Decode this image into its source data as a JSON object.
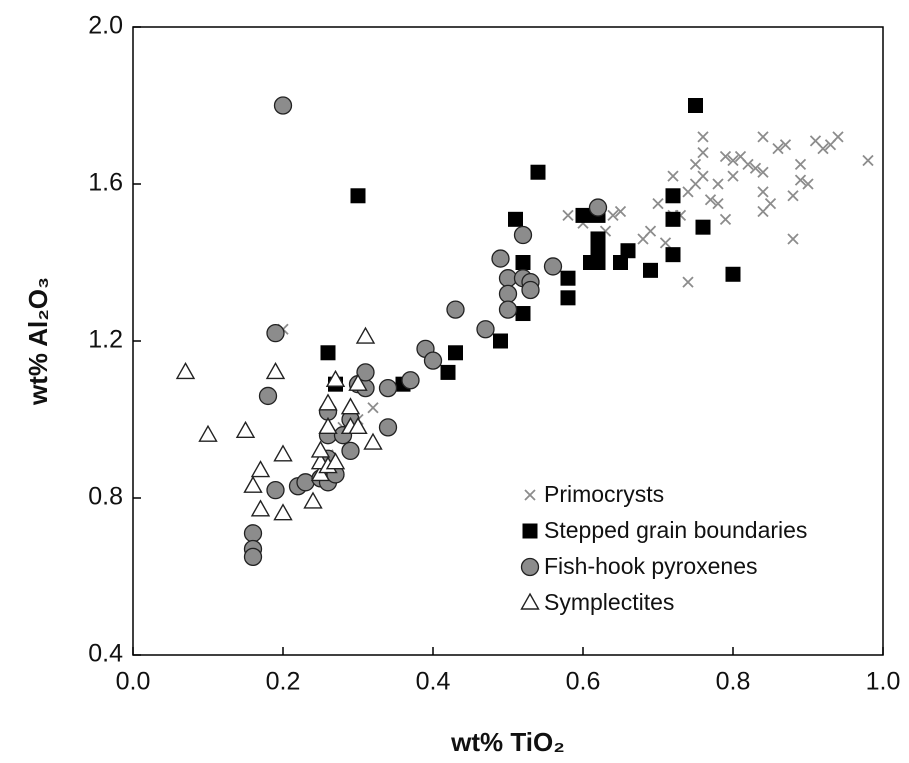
{
  "chart_data": {
    "type": "scatter",
    "xlabel": "wt% TiO₂",
    "ylabel": "wt% Al₂O₃",
    "xlim": [
      0,
      1
    ],
    "ylim": [
      0.4,
      2
    ],
    "xticks": [
      {
        "value": 0,
        "label": "0.0"
      },
      0.2,
      0.4,
      0.6,
      0.8,
      {
        "value": 1,
        "label": "1.0"
      }
    ],
    "yticks": [
      0.4,
      0.8,
      1.2,
      1.6,
      {
        "value": 2,
        "label": "2.0"
      }
    ],
    "legend": "lower right",
    "series": [
      {
        "name": "Primocrysts",
        "marker": "x",
        "color": "#8c8c8c",
        "x": [
          0.98,
          0.94,
          0.93,
          0.92,
          0.91,
          0.9,
          0.89,
          0.89,
          0.88,
          0.88,
          0.87,
          0.86,
          0.85,
          0.84,
          0.84,
          0.84,
          0.83,
          0.82,
          0.81,
          0.8,
          0.8,
          0.79,
          0.78,
          0.78,
          0.77,
          0.76,
          0.76,
          0.75,
          0.75,
          0.74,
          0.74,
          0.73,
          0.72,
          0.72,
          0.71,
          0.7,
          0.69,
          0.68,
          0.65,
          0.64,
          0.63,
          0.62,
          0.6,
          0.58,
          0.76,
          0.79,
          0.84,
          0.2,
          0.32,
          0.31,
          0.26,
          0.28,
          0.3
        ],
        "y": [
          1.66,
          1.72,
          1.7,
          1.69,
          1.71,
          1.6,
          1.65,
          1.61,
          1.46,
          1.57,
          1.7,
          1.69,
          1.55,
          1.58,
          1.53,
          1.72,
          1.64,
          1.65,
          1.67,
          1.62,
          1.66,
          1.51,
          1.6,
          1.55,
          1.56,
          1.62,
          1.68,
          1.65,
          1.6,
          1.58,
          1.35,
          1.52,
          1.62,
          1.52,
          1.45,
          1.55,
          1.48,
          1.46,
          1.53,
          1.52,
          1.48,
          1.4,
          1.5,
          1.52,
          1.72,
          1.67,
          1.63,
          1.23,
          1.03,
          1.12,
          0.91,
          0.98,
          1.0
        ]
      },
      {
        "name": "Stepped grain boundaries",
        "marker": "square",
        "color": "#000000",
        "x": [
          0.75,
          0.3,
          0.54,
          0.72,
          0.72,
          0.76,
          0.51,
          0.6,
          0.62,
          0.62,
          0.62,
          0.66,
          0.65,
          0.61,
          0.62,
          0.58,
          0.58,
          0.52,
          0.52,
          0.69,
          0.72,
          0.8,
          0.49,
          0.43,
          0.42,
          0.36,
          0.26,
          0.27
        ],
        "y": [
          1.8,
          1.57,
          1.63,
          1.57,
          1.51,
          1.49,
          1.51,
          1.52,
          1.52,
          1.46,
          1.43,
          1.43,
          1.4,
          1.4,
          1.4,
          1.36,
          1.31,
          1.4,
          1.27,
          1.38,
          1.42,
          1.37,
          1.2,
          1.17,
          1.12,
          1.09,
          1.17,
          1.09
        ]
      },
      {
        "name": "Fish-hook pyroxenes",
        "marker": "circle",
        "color": "#8c8c8c",
        "x": [
          0.2,
          0.19,
          0.18,
          0.19,
          0.16,
          0.16,
          0.16,
          0.22,
          0.23,
          0.25,
          0.26,
          0.26,
          0.26,
          0.26,
          0.27,
          0.28,
          0.29,
          0.29,
          0.3,
          0.31,
          0.31,
          0.34,
          0.34,
          0.37,
          0.39,
          0.4,
          0.43,
          0.47,
          0.49,
          0.5,
          0.5,
          0.5,
          0.52,
          0.52,
          0.53,
          0.53,
          0.56,
          0.62
        ],
        "y": [
          1.8,
          1.22,
          1.06,
          0.82,
          0.71,
          0.67,
          0.65,
          0.83,
          0.84,
          0.85,
          0.84,
          0.9,
          0.96,
          1.02,
          0.86,
          0.96,
          0.92,
          1.0,
          1.09,
          1.08,
          1.12,
          1.08,
          0.98,
          1.1,
          1.18,
          1.15,
          1.28,
          1.23,
          1.41,
          1.36,
          1.32,
          1.28,
          1.47,
          1.36,
          1.35,
          1.33,
          1.39,
          1.54
        ]
      },
      {
        "name": "Symplectites",
        "marker": "triangle",
        "color": "#ffffff",
        "x": [
          0.07,
          0.1,
          0.15,
          0.16,
          0.17,
          0.17,
          0.19,
          0.2,
          0.2,
          0.24,
          0.25,
          0.25,
          0.25,
          0.26,
          0.26,
          0.26,
          0.27,
          0.27,
          0.29,
          0.29,
          0.3,
          0.3,
          0.31,
          0.32
        ],
        "y": [
          1.12,
          0.96,
          0.97,
          0.83,
          0.87,
          0.77,
          1.12,
          0.91,
          0.76,
          0.79,
          0.86,
          0.89,
          0.92,
          0.88,
          0.98,
          1.04,
          0.89,
          1.1,
          0.98,
          1.03,
          0.98,
          1.09,
          1.21,
          0.94
        ]
      }
    ]
  }
}
